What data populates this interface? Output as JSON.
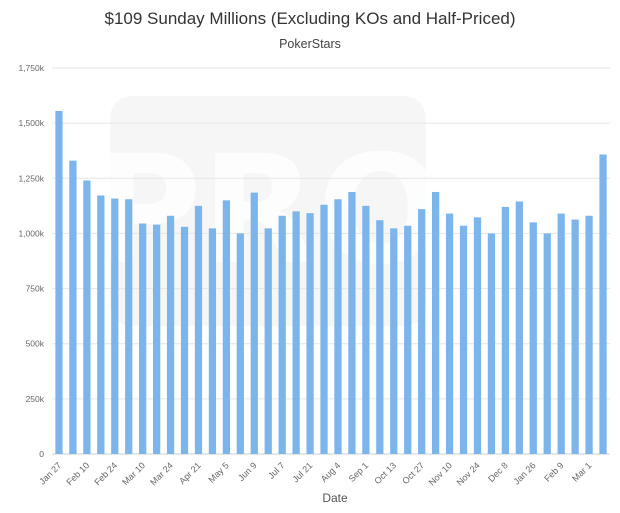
{
  "chart_data": {
    "type": "bar",
    "title": "$109 Sunday Millions (Excluding KOs and Half-Priced)",
    "subtitle": "PokerStars",
    "xlabel": "Date",
    "ylabel": "",
    "ylim": [
      0,
      1750000
    ],
    "yticks": [
      {
        "value": 0,
        "label": "0"
      },
      {
        "value": 250000,
        "label": "250k"
      },
      {
        "value": 500000,
        "label": "500k"
      },
      {
        "value": 750000,
        "label": "750k"
      },
      {
        "value": 1000000,
        "label": "1,000k"
      },
      {
        "value": 1250000,
        "label": "1,250k"
      },
      {
        "value": 1500000,
        "label": "1,500k"
      },
      {
        "value": 1750000,
        "label": "1,750k"
      }
    ],
    "xtick_labels": [
      "Jan 27",
      "Feb 10",
      "Feb 24",
      "Mar 10",
      "Mar 24",
      "Apr 21",
      "May 5",
      "Jun 9",
      "Jul 7",
      "Jul 21",
      "Aug 4",
      "Sep 1",
      "Oct 13",
      "Oct 27",
      "Nov 10",
      "Nov 24",
      "Dec 8",
      "Jan 26",
      "Feb 9",
      "Mar 1"
    ],
    "values": [
      1555000,
      1330000,
      1240000,
      1172000,
      1158000,
      1155000,
      1045000,
      1040000,
      1080000,
      1030000,
      1125000,
      1023000,
      1150000,
      1000000,
      1185000,
      1023000,
      1080000,
      1100000,
      1092000,
      1130000,
      1155000,
      1188000,
      1125000,
      1060000,
      1023000,
      1035000,
      1110000,
      1188000,
      1090000,
      1035000,
      1073000,
      1000000,
      1120000,
      1145000,
      1050000,
      1000000,
      1090000,
      1063000,
      1080000,
      1358000
    ],
    "grid": true,
    "bar_color": "#7cb5ec",
    "watermark": "PRO"
  }
}
